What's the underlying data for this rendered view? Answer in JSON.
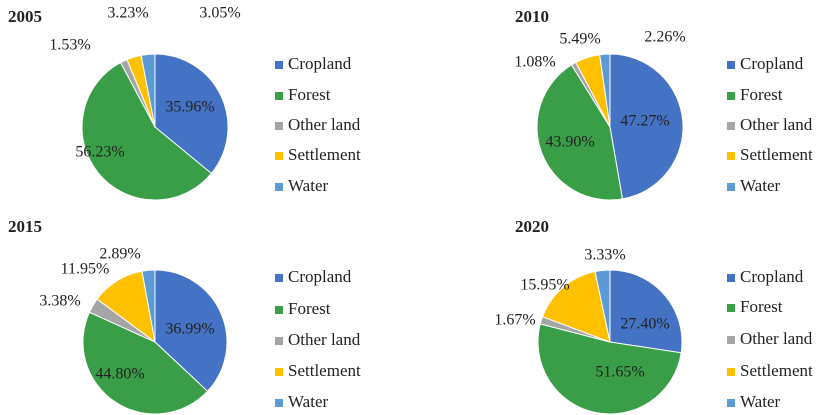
{
  "chart_data": [
    {
      "type": "pie",
      "title": "2005",
      "categories": [
        "Cropland",
        "Forest",
        "Other land",
        "Settlement",
        "Water"
      ],
      "values": [
        35.96,
        56.23,
        1.53,
        3.23,
        3.05
      ],
      "value_labels": [
        "35.96%",
        "56.23%",
        "1.53%",
        "3.23%",
        "3.05%"
      ],
      "colors": [
        "#4472c4",
        "#3a9e48",
        "#a5a5a5",
        "#ffc000",
        "#5b9bd5"
      ]
    },
    {
      "type": "pie",
      "title": "2010",
      "categories": [
        "Cropland",
        "Forest",
        "Other land",
        "Settlement",
        "Water"
      ],
      "values": [
        47.27,
        43.9,
        1.08,
        5.49,
        2.26
      ],
      "value_labels": [
        "47.27%",
        "43.90%",
        "1.08%",
        "5.49%",
        "2.26%"
      ],
      "colors": [
        "#4472c4",
        "#3a9e48",
        "#a5a5a5",
        "#ffc000",
        "#5b9bd5"
      ]
    },
    {
      "type": "pie",
      "title": "2015",
      "categories": [
        "Cropland",
        "Forest",
        "Other land",
        "Settlement",
        "Water"
      ],
      "values": [
        36.99,
        44.8,
        3.38,
        11.95,
        2.89
      ],
      "value_labels": [
        "36.99%",
        "44.80%",
        "3.38%",
        "11.95%",
        "2.89%"
      ],
      "colors": [
        "#4472c4",
        "#3a9e48",
        "#a5a5a5",
        "#ffc000",
        "#5b9bd5"
      ]
    },
    {
      "type": "pie",
      "title": "2020",
      "categories": [
        "Cropland",
        "Forest",
        "Other land",
        "Settlement",
        "Water"
      ],
      "values": [
        27.4,
        51.65,
        1.67,
        15.95,
        3.33
      ],
      "value_labels": [
        "27.40%",
        "51.65%",
        "1.67%",
        "15.95%",
        "3.33%"
      ],
      "colors": [
        "#4472c4",
        "#3a9e48",
        "#a5a5a5",
        "#ffc000",
        "#5b9bd5"
      ]
    }
  ]
}
